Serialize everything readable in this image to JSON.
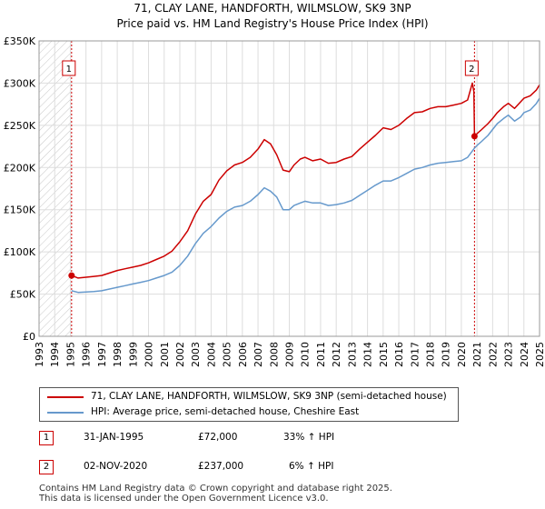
{
  "title": {
    "line1": "71, CLAY LANE, HANDFORTH, WILMSLOW, SK9 3NP",
    "line2": "Price paid vs. HM Land Registry's House Price Index (HPI)"
  },
  "chart_data": {
    "type": "line",
    "xlim": [
      1993,
      2025
    ],
    "ylim": [
      0,
      350000
    ],
    "x_ticks": [
      "1993",
      "1994",
      "1995",
      "1996",
      "1997",
      "1998",
      "1999",
      "2000",
      "2001",
      "2002",
      "2003",
      "2004",
      "2005",
      "2006",
      "2007",
      "2008",
      "2009",
      "2010",
      "2011",
      "2012",
      "2013",
      "2014",
      "2015",
      "2016",
      "2017",
      "2018",
      "2019",
      "2020",
      "2021",
      "2022",
      "2023",
      "2024",
      "2025"
    ],
    "y_ticks": [
      {
        "value": 0,
        "label": "£0"
      },
      {
        "value": 50000,
        "label": "£50K"
      },
      {
        "value": 100000,
        "label": "£100K"
      },
      {
        "value": 150000,
        "label": "£150K"
      },
      {
        "value": 200000,
        "label": "£200K"
      },
      {
        "value": 250000,
        "label": "£250K"
      },
      {
        "value": 300000,
        "label": "£300K"
      },
      {
        "value": 350000,
        "label": "£350K"
      }
    ],
    "grid": true,
    "series": [
      {
        "name": "71, CLAY LANE, HANDFORTH, WILMSLOW, SK9 3NP (semi-detached house)",
        "color": "#cc0000",
        "x": [
          1995.08,
          1995.5,
          1996,
          1996.5,
          1997,
          1997.5,
          1998,
          1998.5,
          1999,
          1999.5,
          2000,
          2000.5,
          2001,
          2001.5,
          2002,
          2002.5,
          2003,
          2003.5,
          2004,
          2004.5,
          2005,
          2005.5,
          2006,
          2006.5,
          2007,
          2007.4,
          2007.8,
          2008.2,
          2008.6,
          2009,
          2009.3,
          2009.7,
          2010,
          2010.5,
          2011,
          2011.5,
          2012,
          2012.5,
          2013,
          2013.5,
          2014,
          2014.5,
          2015,
          2015.5,
          2016,
          2016.5,
          2017,
          2017.5,
          2018,
          2018.5,
          2019,
          2019.5,
          2020,
          2020.4,
          2020.7,
          2020.8,
          2020.84,
          2021,
          2021.3,
          2021.7,
          2022,
          2022.3,
          2022.7,
          2023,
          2023.4,
          2023.8,
          2024,
          2024.4,
          2024.8,
          2025
        ],
        "values": [
          72000,
          69000,
          70000,
          71000,
          72000,
          75000,
          78000,
          80000,
          82000,
          84000,
          87000,
          91000,
          95000,
          101000,
          112000,
          125000,
          145000,
          160000,
          168000,
          185000,
          196000,
          203000,
          206000,
          212000,
          222000,
          233000,
          228000,
          215000,
          197000,
          195000,
          203000,
          210000,
          212000,
          208000,
          210000,
          205000,
          206000,
          210000,
          213000,
          222000,
          230000,
          238000,
          247000,
          245000,
          250000,
          258000,
          265000,
          266000,
          270000,
          272000,
          272000,
          274000,
          276000,
          280000,
          300000,
          290000,
          237000,
          240000,
          245000,
          252000,
          258000,
          265000,
          272000,
          276000,
          270000,
          278000,
          282000,
          285000,
          292000,
          298000
        ]
      },
      {
        "name": "HPI: Average price, semi-detached house, Cheshire East",
        "color": "#6699cc",
        "x": [
          1995.08,
          1995.5,
          1996,
          1996.5,
          1997,
          1997.5,
          1998,
          1998.5,
          1999,
          1999.5,
          2000,
          2000.5,
          2001,
          2001.5,
          2002,
          2002.5,
          2003,
          2003.5,
          2004,
          2004.5,
          2005,
          2005.5,
          2006,
          2006.5,
          2007,
          2007.4,
          2007.8,
          2008.2,
          2008.6,
          2009,
          2009.3,
          2009.7,
          2010,
          2010.5,
          2011,
          2011.5,
          2012,
          2012.5,
          2013,
          2013.5,
          2014,
          2014.5,
          2015,
          2015.5,
          2016,
          2016.5,
          2017,
          2017.5,
          2018,
          2018.5,
          2019,
          2019.5,
          2020,
          2020.4,
          2020.84,
          2021,
          2021.3,
          2021.7,
          2022,
          2022.3,
          2022.7,
          2023,
          2023.4,
          2023.8,
          2024,
          2024.4,
          2024.8,
          2025
        ],
        "values": [
          54000,
          52000,
          52500,
          53000,
          54000,
          56000,
          58000,
          60000,
          62000,
          64000,
          66000,
          69000,
          72000,
          76000,
          84000,
          95000,
          110000,
          122000,
          130000,
          140000,
          148000,
          153000,
          155000,
          160000,
          168000,
          176000,
          172000,
          165000,
          150000,
          150000,
          155000,
          158000,
          160000,
          158000,
          158000,
          155000,
          156000,
          158000,
          161000,
          167000,
          173000,
          179000,
          184000,
          184000,
          188000,
          193000,
          198000,
          200000,
          203000,
          205000,
          206000,
          207000,
          208000,
          212000,
          223000,
          226000,
          231000,
          238000,
          245000,
          252000,
          258000,
          262000,
          255000,
          260000,
          265000,
          268000,
          276000,
          282000
        ]
      }
    ],
    "annotations": [
      {
        "label": "1",
        "x": 1995.08,
        "y": 72000
      },
      {
        "label": "2",
        "x": 2020.84,
        "y": 237000
      }
    ]
  },
  "legend": {
    "items": [
      {
        "label": "71, CLAY LANE, HANDFORTH, WILMSLOW, SK9 3NP (semi-detached house)",
        "color": "#cc0000"
      },
      {
        "label": "HPI: Average price, semi-detached house, Cheshire East",
        "color": "#6699cc"
      }
    ]
  },
  "sales": [
    {
      "num": "1",
      "date": "31-JAN-1995",
      "price": "£72,000",
      "hpi": "33% ↑ HPI"
    },
    {
      "num": "2",
      "date": "02-NOV-2020",
      "price": "£237,000",
      "hpi": "6% ↑ HPI"
    }
  ],
  "footer": {
    "line1": "Contains HM Land Registry data © Crown copyright and database right 2025.",
    "line2": "This data is licensed under the Open Government Licence v3.0."
  }
}
